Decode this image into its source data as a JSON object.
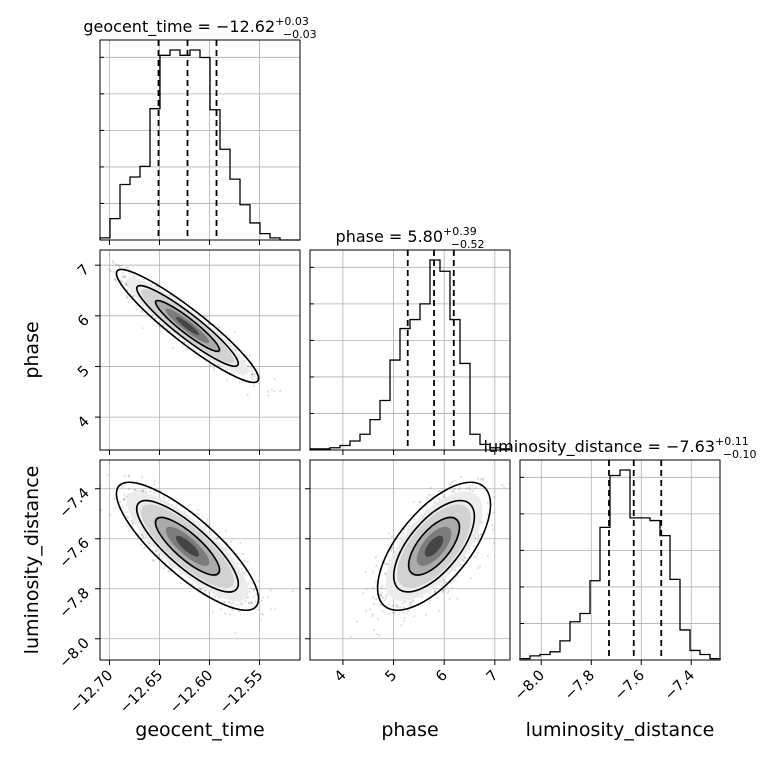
{
  "chart_data": {
    "type": "corner",
    "grid": true,
    "parameters": [
      "geocent_time",
      "phase",
      "luminosity_distance"
    ],
    "axis_labels": {
      "geocent_time": "geocent_time",
      "phase": "phase",
      "luminosity_distance": "luminosity_distance"
    },
    "ranges": {
      "geocent_time": [
        -12.7095,
        -12.5095
      ],
      "phase": [
        3.35,
        7.3
      ],
      "luminosity_distance": [
        -8.085,
        -7.285
      ]
    },
    "ticks": {
      "geocent_time": [
        -12.7,
        -12.65,
        -12.6,
        -12.55
      ],
      "phase": [
        4,
        5,
        6,
        7
      ],
      "luminosity_distance": [
        -8.0,
        -7.8,
        -7.6,
        -7.4
      ]
    },
    "tick_labels": {
      "geocent_time": [
        "−12.70",
        "−12.65",
        "−12.60",
        "−12.55"
      ],
      "phase": [
        "4",
        "5",
        "6",
        "7"
      ],
      "phase_y": [
        "4",
        "5",
        "6",
        "7"
      ],
      "luminosity_distance": [
        "−8.0",
        "−7.8",
        "−7.6",
        "−7.4"
      ],
      "luminosity_distance_y": [
        "−8.0",
        "−7.8",
        "−7.6",
        "−7.4"
      ]
    },
    "titles": {
      "geocent_time": {
        "name": "geocent_time",
        "median": "−12.62",
        "plus": "+0.03",
        "minus": "−0.03"
      },
      "phase": {
        "name": "phase",
        "median": "5.80",
        "plus": "+0.39",
        "minus": "−0.52"
      },
      "luminosity_distance": {
        "name": "luminosity_distance",
        "median": "−7.63",
        "plus": "+0.11",
        "minus": "−0.10"
      }
    },
    "quantiles": {
      "geocent_time": [
        -12.651,
        -12.622,
        -12.593
      ],
      "phase": [
        5.28,
        5.8,
        6.19
      ],
      "luminosity_distance": [
        -7.729,
        -7.63,
        -7.52
      ]
    },
    "histograms": {
      "geocent_time": {
        "edges": [
          -12.7095,
          -12.6995,
          -12.6895,
          -12.6795,
          -12.6695,
          -12.6595,
          -12.6495,
          -12.6395,
          -12.6295,
          -12.6195,
          -12.6095,
          -12.5995,
          -12.5895,
          -12.5795,
          -12.5695,
          -12.5595,
          -12.5495,
          -12.5395,
          -12.5295,
          -12.5195,
          -12.5095
        ],
        "counts": [
          2,
          20,
          52,
          59,
          69,
          123,
          173,
          178,
          173,
          178,
          171,
          122,
          85,
          57,
          33,
          16,
          6,
          2,
          0,
          0
        ]
      },
      "phase": {
        "edges": [
          3.35,
          3.5475,
          3.745,
          3.9425,
          4.14,
          4.3375,
          4.535,
          4.7325,
          4.93,
          5.1275,
          5.325,
          5.5225,
          5.72,
          5.9175,
          6.115,
          6.3125,
          6.51,
          6.7075,
          6.905,
          7.1025,
          7.3
        ],
        "counts": [
          1,
          1,
          2,
          4,
          8,
          14,
          27,
          44,
          80,
          108,
          116,
          130,
          169,
          159,
          116,
          77,
          14,
          5,
          2,
          1
        ]
      },
      "luminosity_distance": {
        "edges": [
          -8.085,
          -8.045,
          -8.005,
          -7.965,
          -7.925,
          -7.885,
          -7.845,
          -7.805,
          -7.765,
          -7.725,
          -7.685,
          -7.645,
          -7.605,
          -7.565,
          -7.525,
          -7.485,
          -7.445,
          -7.405,
          -7.365,
          -7.325,
          -7.285
        ],
        "counts": [
          1,
          3,
          4,
          6,
          14,
          28,
          34,
          58,
          97,
          135,
          139,
          104,
          104,
          102,
          91,
          59,
          22,
          7,
          4,
          1
        ]
      }
    },
    "joint": {
      "geocent_time|phase": {
        "rho": -0.93
      },
      "geocent_time|luminosity_distance": {
        "rho": -0.82
      },
      "phase|luminosity_distance": {
        "rho": 0.65
      }
    }
  }
}
